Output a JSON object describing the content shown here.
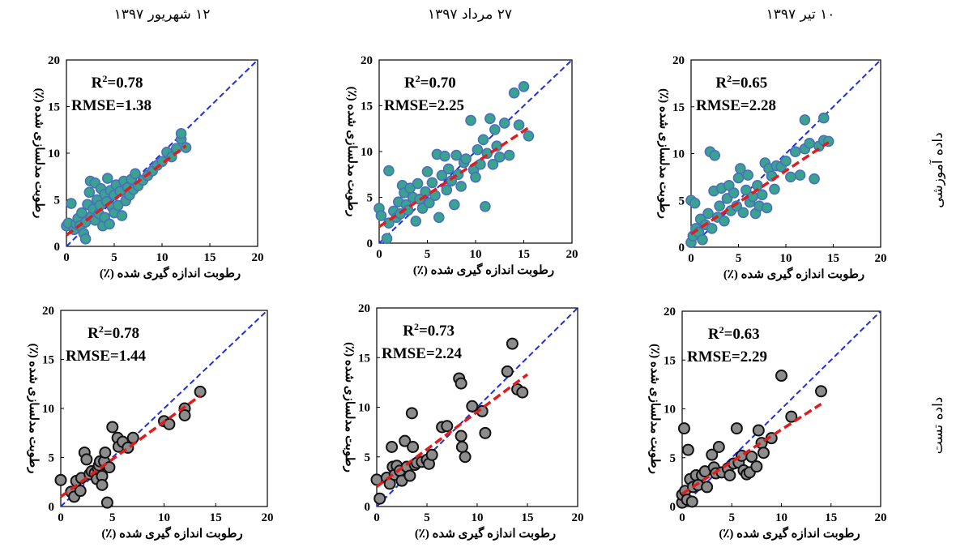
{
  "column_titles": [
    "۱۲ شهریور ۱۳۹۷",
    "۲۷ مرداد ۱۳۹۷",
    "۱۰ تیر ۱۳۹۷"
  ],
  "row_labels": [
    "داده آموزشی",
    "داده تست"
  ],
  "colors": {
    "train_fill": "#3aa38f",
    "train_edge": "#4a6fc0",
    "test_fill": "#8c8c8c",
    "test_edge": "#111111",
    "one_to_one_line": "#1f2ee0",
    "fit_line": "#e01c1c"
  },
  "chart_data": [
    {
      "type": "scatter",
      "name": "train-1",
      "xlabel": "رطوبت اندازه گیری شده (٪)",
      "ylabel": "رطوبت مدلسازی شده (٪)",
      "xlim": [
        0,
        20
      ],
      "ylim": [
        0,
        20
      ],
      "xticks": [
        0,
        5,
        10,
        15,
        20
      ],
      "yticks": [
        0,
        5,
        10,
        15,
        20
      ],
      "r2": "0.78",
      "rmse": "RMSE=1.38",
      "fit_line": {
        "x": [
          0,
          12.5
        ],
        "y": [
          1.2,
          10.8
        ]
      },
      "points": [
        [
          0,
          2.2
        ],
        [
          0.2,
          2.5
        ],
        [
          0.5,
          4.6
        ],
        [
          0.8,
          1.8
        ],
        [
          1,
          2.4
        ],
        [
          1.2,
          3
        ],
        [
          1.4,
          2.2
        ],
        [
          1.6,
          3.6
        ],
        [
          1.8,
          1.4
        ],
        [
          2,
          0.8
        ],
        [
          2,
          2.6
        ],
        [
          2.2,
          4.5
        ],
        [
          2.4,
          5.8
        ],
        [
          2.5,
          7
        ],
        [
          2.6,
          3.2
        ],
        [
          2.8,
          4
        ],
        [
          3,
          6.8
        ],
        [
          3,
          2.8
        ],
        [
          3.2,
          5
        ],
        [
          3.4,
          3.5
        ],
        [
          3.5,
          4.4
        ],
        [
          3.6,
          6.2
        ],
        [
          3.8,
          2.2
        ],
        [
          4,
          5.6
        ],
        [
          4,
          3.1
        ],
        [
          4.2,
          4.8
        ],
        [
          4.3,
          7.3
        ],
        [
          4.5,
          2.4
        ],
        [
          4.6,
          6
        ],
        [
          4.8,
          4.2
        ],
        [
          5,
          5.5
        ],
        [
          5,
          3.6
        ],
        [
          5.2,
          6.6
        ],
        [
          5.4,
          4.4
        ],
        [
          5.6,
          5.9
        ],
        [
          5.8,
          3.3
        ],
        [
          6,
          7
        ],
        [
          6.2,
          4.9
        ],
        [
          6.4,
          6.3
        ],
        [
          6.6,
          5.5
        ],
        [
          6.8,
          7.2
        ],
        [
          7,
          6.1
        ],
        [
          7.2,
          7.8
        ],
        [
          7.5,
          6.5
        ],
        [
          8,
          7.1
        ],
        [
          8.5,
          7.6
        ],
        [
          9,
          8.1
        ],
        [
          9.5,
          8.7
        ],
        [
          10,
          9.1
        ],
        [
          10.5,
          10.1
        ],
        [
          11,
          9.6
        ],
        [
          11.5,
          10.5
        ],
        [
          12,
          11.5
        ],
        [
          12,
          12.1
        ],
        [
          12.5,
          10.6
        ]
      ]
    },
    {
      "type": "scatter",
      "name": "train-2",
      "xlabel": "رطوبت اندازه گیری شده (٪)",
      "ylabel": "رطوبت مدلسازی شده (٪)",
      "xlim": [
        0,
        20
      ],
      "ylim": [
        0,
        20
      ],
      "xticks": [
        0,
        5,
        10,
        15,
        20
      ],
      "yticks": [
        0,
        5,
        10,
        15,
        20
      ],
      "r2": "0.70",
      "rmse": "RMSE=2.25",
      "fit_line": {
        "x": [
          0,
          15.5
        ],
        "y": [
          1.8,
          12.6
        ]
      },
      "points": [
        [
          0,
          3.8
        ],
        [
          0.2,
          3
        ],
        [
          0.8,
          0.5
        ],
        [
          1,
          7.9
        ],
        [
          1,
          2.2
        ],
        [
          1.5,
          3.5
        ],
        [
          1.8,
          2.8
        ],
        [
          2,
          4.5
        ],
        [
          2.2,
          3.2
        ],
        [
          2.4,
          6.3
        ],
        [
          2.6,
          5.5
        ],
        [
          2.8,
          4.2
        ],
        [
          3,
          3.6
        ],
        [
          3.2,
          6
        ],
        [
          3.5,
          5
        ],
        [
          3.8,
          2.4
        ],
        [
          4,
          6.5
        ],
        [
          4.2,
          4.8
        ],
        [
          4.5,
          3.8
        ],
        [
          4.8,
          5.6
        ],
        [
          5,
          7.8
        ],
        [
          5.2,
          4.4
        ],
        [
          5.5,
          6.6
        ],
        [
          5.8,
          5.2
        ],
        [
          6,
          9.7
        ],
        [
          6.2,
          2.8
        ],
        [
          6.5,
          7.4
        ],
        [
          6.8,
          9.5
        ],
        [
          7,
          5.8
        ],
        [
          7.2,
          8.1
        ],
        [
          7.5,
          6.8
        ],
        [
          7.8,
          4.2
        ],
        [
          8,
          9.6
        ],
        [
          8.2,
          7.5
        ],
        [
          8.5,
          6.2
        ],
        [
          8.8,
          8.8
        ],
        [
          9,
          9.2
        ],
        [
          9.5,
          13.4
        ],
        [
          9.8,
          8
        ],
        [
          10,
          7.2
        ],
        [
          10.2,
          10.2
        ],
        [
          10.5,
          8.6
        ],
        [
          10.8,
          11.3
        ],
        [
          11,
          4
        ],
        [
          11.2,
          9.8
        ],
        [
          11.5,
          13.6
        ],
        [
          11.8,
          8.6
        ],
        [
          12,
          12.4
        ],
        [
          12.2,
          10.6
        ],
        [
          12.5,
          9.4
        ],
        [
          13,
          13.1
        ],
        [
          13.5,
          9.6
        ],
        [
          14,
          16.4
        ],
        [
          14.5,
          12.9
        ],
        [
          15,
          17.1
        ],
        [
          15.5,
          11.7
        ]
      ]
    },
    {
      "type": "scatter",
      "name": "train-3",
      "xlabel": "رطوبت اندازه گیری شده (٪)",
      "ylabel": "رطوبت مدلسازی شده (٪)",
      "xlim": [
        0,
        20
      ],
      "ylim": [
        0,
        20
      ],
      "xticks": [
        0,
        5,
        10,
        15,
        20
      ],
      "yticks": [
        0,
        5,
        10,
        15,
        20
      ],
      "r2": "0.65",
      "rmse": "RMSE=2.28",
      "fit_line": {
        "x": [
          0,
          14.5
        ],
        "y": [
          1.4,
          11.2
        ]
      },
      "points": [
        [
          0,
          5
        ],
        [
          0,
          0.5
        ],
        [
          0.2,
          1.2
        ],
        [
          0.4,
          4.7
        ],
        [
          0.5,
          2
        ],
        [
          0.8,
          1.6
        ],
        [
          1,
          3
        ],
        [
          1.2,
          0.8
        ],
        [
          1.5,
          2.4
        ],
        [
          1.8,
          3.6
        ],
        [
          2,
          10.2
        ],
        [
          2.2,
          2
        ],
        [
          2.4,
          6
        ],
        [
          2.5,
          9.8
        ],
        [
          2.8,
          3.2
        ],
        [
          3,
          4.4
        ],
        [
          3.2,
          6.3
        ],
        [
          3.5,
          2.8
        ],
        [
          3.8,
          5.2
        ],
        [
          4,
          6.6
        ],
        [
          4.2,
          3.9
        ],
        [
          4.5,
          5.8
        ],
        [
          4.8,
          4.4
        ],
        [
          5,
          7.4
        ],
        [
          5.2,
          8.4
        ],
        [
          5.5,
          3.7
        ],
        [
          5.8,
          6.1
        ],
        [
          6,
          7.7
        ],
        [
          6.2,
          4.8
        ],
        [
          6.5,
          5.4
        ],
        [
          6.8,
          3.6
        ],
        [
          7,
          6.6
        ],
        [
          7.2,
          4.4
        ],
        [
          7.5,
          5.6
        ],
        [
          7.8,
          9
        ],
        [
          8,
          4.2
        ],
        [
          8.2,
          8.4
        ],
        [
          8.5,
          7.6
        ],
        [
          8.8,
          6.2
        ],
        [
          9,
          8.7
        ],
        [
          9.5,
          8.6
        ],
        [
          10,
          9.2
        ],
        [
          10.5,
          7.5
        ],
        [
          11,
          10.2
        ],
        [
          11.5,
          7.7
        ],
        [
          12,
          10.5
        ],
        [
          12.5,
          11.1
        ],
        [
          13,
          7.3
        ],
        [
          13.5,
          10.8
        ],
        [
          14,
          11.4
        ],
        [
          14.5,
          11.3
        ],
        [
          12,
          13.6
        ],
        [
          14,
          13.8
        ]
      ]
    },
    {
      "type": "scatter",
      "name": "test-1",
      "xlabel": "رطوبت اندازه گیری شده (٪)",
      "ylabel": "رطوبت مدلسازی شده (٪)",
      "xlim": [
        0,
        20
      ],
      "ylim": [
        0,
        20
      ],
      "xticks": [
        0,
        5,
        10,
        15,
        20
      ],
      "yticks": [
        0,
        5,
        10,
        15,
        20
      ],
      "r2": "0.78",
      "rmse": "RMSE=1.44",
      "fit_line": {
        "x": [
          0,
          13.5
        ],
        "y": [
          1,
          11.3
        ]
      },
      "points": [
        [
          0,
          2.7
        ],
        [
          1,
          1.5
        ],
        [
          1.3,
          1
        ],
        [
          1.5,
          2.6
        ],
        [
          1.9,
          1.6
        ],
        [
          2,
          2.9
        ],
        [
          2.3,
          5.5
        ],
        [
          2.5,
          4.8
        ],
        [
          2.8,
          3.3
        ],
        [
          3,
          3.6
        ],
        [
          3.3,
          3.4
        ],
        [
          3.5,
          2.8
        ],
        [
          3.6,
          3.9
        ],
        [
          3.7,
          4.2
        ],
        [
          3.8,
          4.6
        ],
        [
          4,
          3.1
        ],
        [
          4,
          2.2
        ],
        [
          4.2,
          4.6
        ],
        [
          4.3,
          5.5
        ],
        [
          4.5,
          0.4
        ],
        [
          4.7,
          4
        ],
        [
          5,
          8.1
        ],
        [
          5.5,
          7
        ],
        [
          5.6,
          6.1
        ],
        [
          6,
          6.6
        ],
        [
          6.5,
          6
        ],
        [
          7,
          7
        ],
        [
          10,
          8.7
        ],
        [
          10.5,
          8.4
        ],
        [
          12,
          10
        ],
        [
          12,
          9.3
        ],
        [
          13.5,
          11.7
        ]
      ]
    },
    {
      "type": "scatter",
      "name": "test-2",
      "xlabel": "رطوبت اندازه گیری شده (٪)",
      "ylabel": "رطوبت مدلسازی شده (٪)",
      "xlim": [
        0,
        20
      ],
      "ylim": [
        0,
        20
      ],
      "xticks": [
        0,
        5,
        10,
        15,
        20
      ],
      "yticks": [
        0,
        5,
        10,
        15,
        20
      ],
      "r2": "0.73",
      "rmse": "RMSE=2.24",
      "fit_line": {
        "x": [
          0,
          15
        ],
        "y": [
          2,
          13.3
        ]
      },
      "points": [
        [
          0,
          2.7
        ],
        [
          0.3,
          0.8
        ],
        [
          1,
          2.9
        ],
        [
          1.3,
          2.3
        ],
        [
          1.5,
          6
        ],
        [
          1.6,
          4
        ],
        [
          1.8,
          3.2
        ],
        [
          2,
          4.1
        ],
        [
          2.3,
          3.6
        ],
        [
          2.5,
          2.6
        ],
        [
          2.8,
          6.6
        ],
        [
          3,
          4
        ],
        [
          3.3,
          3.1
        ],
        [
          3.5,
          9.4
        ],
        [
          3.6,
          6
        ],
        [
          3.8,
          4.2
        ],
        [
          4,
          4.4
        ],
        [
          4.5,
          4.5
        ],
        [
          5,
          4.7
        ],
        [
          5.2,
          4.3
        ],
        [
          5.5,
          5.2
        ],
        [
          6.5,
          8
        ],
        [
          7,
          8.1
        ],
        [
          8.2,
          12.9
        ],
        [
          8.4,
          12.4
        ],
        [
          8.4,
          7.1
        ],
        [
          8.5,
          6
        ],
        [
          8.8,
          5
        ],
        [
          9.5,
          10.1
        ],
        [
          10.5,
          9.6
        ],
        [
          10.8,
          7.4
        ],
        [
          13,
          13.6
        ],
        [
          13.5,
          16.4
        ],
        [
          14,
          11.8
        ],
        [
          14.5,
          11.5
        ]
      ]
    },
    {
      "type": "scatter",
      "name": "test-3",
      "xlabel": "رطوبت اندازه گیری شده (٪)",
      "ylabel": "رطوبت مدلسازی شده (٪)",
      "xlim": [
        0,
        20
      ],
      "ylim": [
        0,
        20
      ],
      "xticks": [
        0,
        5,
        10,
        15,
        20
      ],
      "yticks": [
        0,
        5,
        10,
        15,
        20
      ],
      "r2": "0.63",
      "rmse": "RMSE=2.29",
      "fit_line": {
        "x": [
          0,
          14
        ],
        "y": [
          1.3,
          10.5
        ]
      },
      "points": [
        [
          0,
          0.4
        ],
        [
          0,
          1.2
        ],
        [
          0.2,
          8
        ],
        [
          0.3,
          1.6
        ],
        [
          0.5,
          0.7
        ],
        [
          0.6,
          5.8
        ],
        [
          0.8,
          2.8
        ],
        [
          1,
          0.5
        ],
        [
          1.1,
          2
        ],
        [
          1.4,
          3.2
        ],
        [
          1.6,
          2.2
        ],
        [
          2,
          3.2
        ],
        [
          2.3,
          3.6
        ],
        [
          2.5,
          2
        ],
        [
          3,
          5.3
        ],
        [
          3.2,
          4
        ],
        [
          3.4,
          3.4
        ],
        [
          3.7,
          6.1
        ],
        [
          4,
          3.5
        ],
        [
          4.6,
          3.9
        ],
        [
          4.8,
          3.2
        ],
        [
          5.2,
          4.4
        ],
        [
          5.5,
          8
        ],
        [
          5.7,
          4.5
        ],
        [
          6,
          5.2
        ],
        [
          6.2,
          3.7
        ],
        [
          6.5,
          3.3
        ],
        [
          6.8,
          3.5
        ],
        [
          7,
          5.1
        ],
        [
          7.5,
          4.1
        ],
        [
          7.7,
          7.8
        ],
        [
          8,
          6.5
        ],
        [
          8.2,
          5.5
        ],
        [
          9,
          7
        ],
        [
          10,
          13.4
        ],
        [
          11,
          9.2
        ],
        [
          14,
          11.8
        ]
      ]
    }
  ]
}
